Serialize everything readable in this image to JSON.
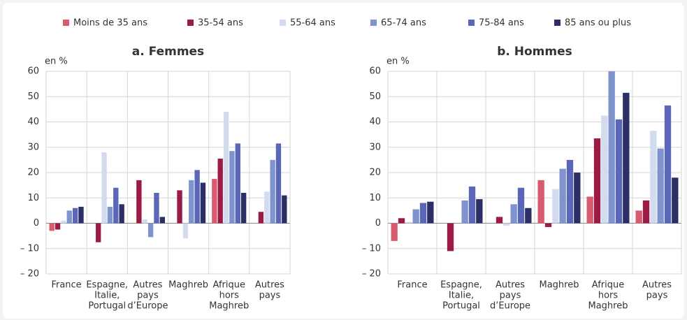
{
  "chart_data": [
    {
      "type": "bar",
      "title": "a. Femmes",
      "ylabel": "en %",
      "categories": [
        [
          "France"
        ],
        [
          "Espagne,",
          "Italie,",
          "Portugal"
        ],
        [
          "Autres",
          "pays",
          "d’Europe"
        ],
        [
          "Maghreb"
        ],
        [
          "Afrique",
          "hors",
          "Maghreb"
        ],
        [
          "Autres",
          "pays"
        ]
      ],
      "series": [
        {
          "name": "Moins de 35 ans",
          "color": "#d95b6e",
          "values": [
            -3,
            null,
            null,
            null,
            17.5,
            null
          ]
        },
        {
          "name": "35-54 ans",
          "color": "#9b1b45",
          "values": [
            -2.5,
            -7.5,
            17,
            13,
            25.5,
            4.5
          ]
        },
        {
          "name": "55-64 ans",
          "color": "#d3dcef",
          "values": [
            1,
            28,
            1.5,
            -6,
            44,
            12.5
          ]
        },
        {
          "name": "65-74 ans",
          "color": "#7f93cc",
          "values": [
            5,
            6.5,
            -5.5,
            17,
            28.5,
            25
          ]
        },
        {
          "name": "75-84 ans",
          "color": "#5a67b8",
          "values": [
            6,
            14,
            12,
            21,
            31.5,
            31.5
          ]
        },
        {
          "name": "85 ans ou plus",
          "color": "#2b2f66",
          "values": [
            6.5,
            7.5,
            2.5,
            16,
            12,
            11
          ]
        }
      ],
      "ylim": [
        -20,
        60
      ],
      "yticks": [
        {
          "value": -20,
          "label": "– 20"
        },
        {
          "value": -10,
          "label": "– 10"
        },
        0,
        10,
        20,
        30,
        40,
        50,
        60
      ],
      "grid": true
    },
    {
      "type": "bar",
      "title": "b. Hommes",
      "ylabel": "en %",
      "categories": [
        [
          "France"
        ],
        [
          "Espagne,",
          "Italie,",
          "Portugal"
        ],
        [
          "Autres",
          "pays",
          "d’Europe"
        ],
        [
          "Maghreb"
        ],
        [
          "Afrique",
          "hors",
          "Maghreb"
        ],
        [
          "Autres",
          "pays"
        ]
      ],
      "series": [
        {
          "name": "Moins de 35 ans",
          "color": "#d95b6e",
          "values": [
            -7,
            null,
            null,
            17,
            10.5,
            5
          ]
        },
        {
          "name": "35-54 ans",
          "color": "#9b1b45",
          "values": [
            2,
            -11,
            2.5,
            -1.5,
            33.5,
            9
          ]
        },
        {
          "name": "55-64 ans",
          "color": "#d3dcef",
          "values": [
            0.5,
            null,
            -1,
            13.5,
            42.5,
            36.5
          ]
        },
        {
          "name": "65-74 ans",
          "color": "#7f93cc",
          "values": [
            5.5,
            9,
            7.5,
            21.5,
            60,
            29.5
          ]
        },
        {
          "name": "75-84 ans",
          "color": "#5a67b8",
          "values": [
            8,
            14.5,
            14,
            25,
            41,
            46.5
          ]
        },
        {
          "name": "85 ans ou plus",
          "color": "#2b2f66",
          "values": [
            8.5,
            9.5,
            6,
            20,
            51.5,
            18
          ]
        }
      ],
      "ylim": [
        -20,
        60
      ],
      "yticks": [
        {
          "value": -20,
          "label": "– 20"
        },
        {
          "value": -10,
          "label": "– 10"
        },
        0,
        10,
        20,
        30,
        40,
        50,
        60
      ],
      "grid": true
    }
  ]
}
